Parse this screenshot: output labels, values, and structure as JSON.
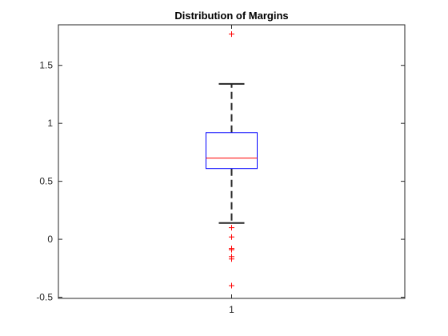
{
  "chart_data": {
    "type": "box",
    "title": "Distribution of Margins",
    "xlabel": "",
    "ylabel": "",
    "categories": [
      "1"
    ],
    "ylim": [
      -0.51,
      1.85
    ],
    "yticks": [
      -0.5,
      0,
      0.5,
      1,
      1.5
    ],
    "ytick_labels": [
      "-0.5",
      "0",
      "0.5",
      "1",
      "1.5"
    ],
    "xtick_labels": [
      "1"
    ],
    "grid": false,
    "box": {
      "q1": 0.61,
      "median": 0.7,
      "q3": 0.92,
      "whisker_low": 0.14,
      "whisker_high": 1.34
    },
    "outliers": [
      1.77,
      0.1,
      0.02,
      -0.08,
      -0.09,
      -0.15,
      -0.17,
      -0.4
    ],
    "colors": {
      "box": "#0000ff",
      "median": "#ff0000",
      "whisker": "#262626",
      "outlier": "#ff0000",
      "axes": "#262626"
    }
  }
}
